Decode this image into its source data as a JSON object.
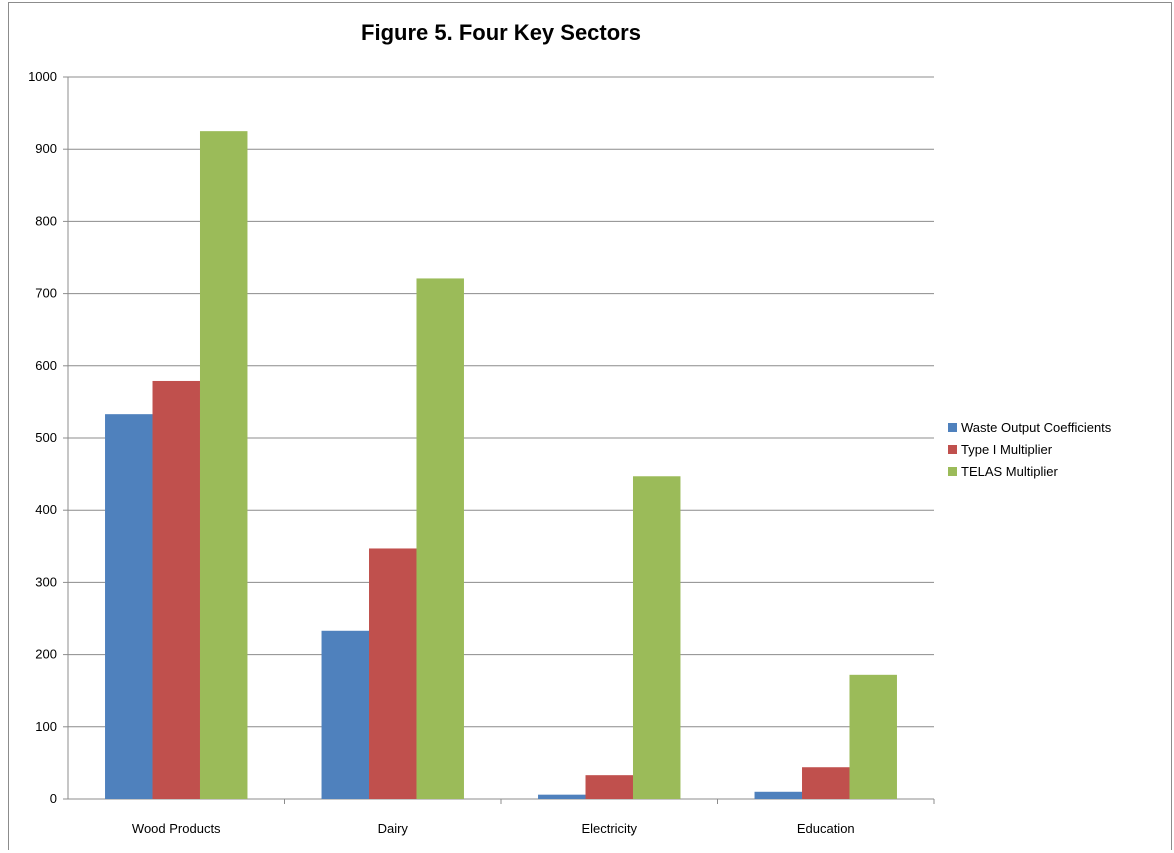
{
  "chart_data": {
    "type": "bar",
    "title": "Figure 5. Four Key Sectors",
    "xlabel": "",
    "ylabel": "",
    "categories": [
      "Wood Products",
      "Dairy",
      "Electricity",
      "Education"
    ],
    "series": [
      {
        "name": "Waste Output Coefficients",
        "color": "#4f81bd",
        "values": [
          533,
          233,
          6,
          10
        ]
      },
      {
        "name": "Type I Multiplier",
        "color": "#c0504d",
        "values": [
          579,
          347,
          33,
          44
        ]
      },
      {
        "name": "TELAS Multiplier",
        "color": "#9bbb59",
        "values": [
          925,
          721,
          447,
          172
        ]
      }
    ],
    "ylim": [
      0,
      1000
    ],
    "yticks": [
      0,
      100,
      200,
      300,
      400,
      500,
      600,
      700,
      800,
      900,
      1000
    ],
    "grid": true,
    "legend_position": "right"
  }
}
